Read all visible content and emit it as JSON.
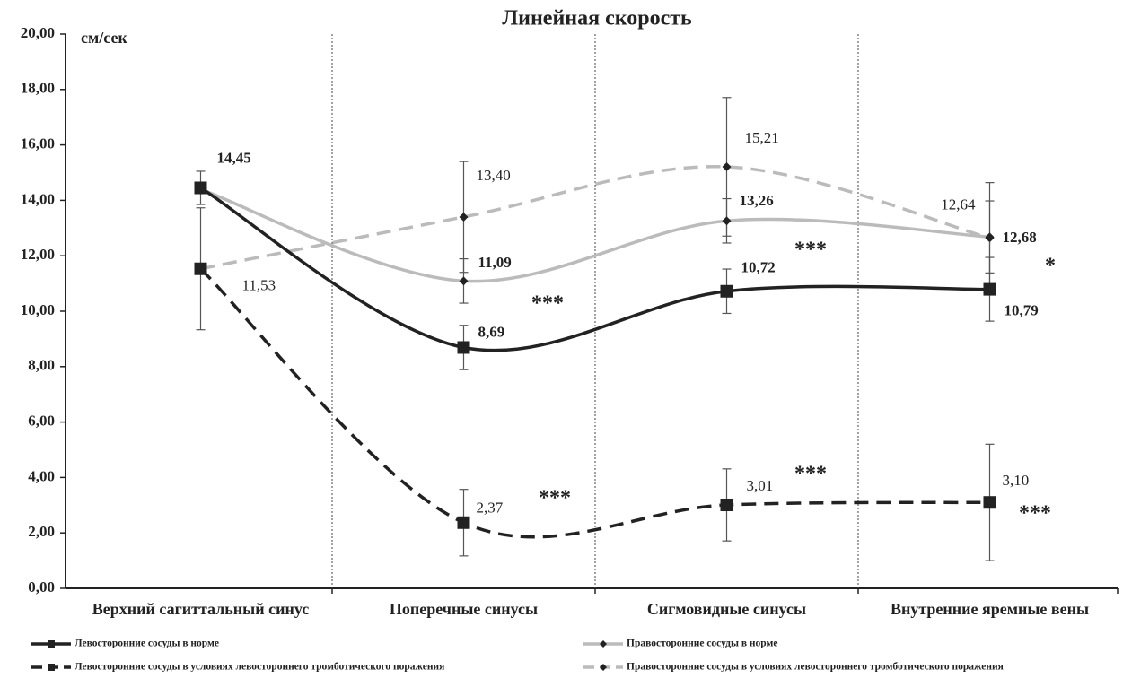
{
  "chart_data": {
    "type": "line",
    "title": "Линейная скорость",
    "y_label": "см/сек",
    "categories": [
      "Верхний сагиттальный синус",
      "Поперечные синусы",
      "Сигмовидные синусы",
      "Внутренние яремные вены"
    ],
    "ylim": [
      0,
      20
    ],
    "yticks": [
      {
        "value": 0,
        "label": "0,00"
      },
      {
        "value": 2,
        "label": "2,00"
      },
      {
        "value": 4,
        "label": "4,00"
      },
      {
        "value": 6,
        "label": "6,00"
      },
      {
        "value": 8,
        "label": "8,00"
      },
      {
        "value": 10,
        "label": "10,00"
      },
      {
        "value": 12,
        "label": "12,00"
      },
      {
        "value": 14,
        "label": "14,00"
      },
      {
        "value": 16,
        "label": "16,00"
      },
      {
        "value": 18,
        "label": "18,00"
      },
      {
        "value": 20,
        "label": "20,00"
      }
    ],
    "smooth": true,
    "series": [
      {
        "name": "Левосторонние сосуды в норме",
        "color": "#222222",
        "line_style": "solid",
        "marker": "square",
        "values": [
          14.45,
          8.69,
          10.72,
          10.79
        ],
        "value_labels": [
          "14,45",
          "8,69",
          "10,72",
          "10,79"
        ],
        "errors": [
          0.6,
          0.8,
          0.8,
          1.15
        ]
      },
      {
        "name": "Правосторонние сосуды в норме",
        "color": "#bbbbbb",
        "line_style": "solid",
        "marker": "diamond",
        "values": [
          14.4,
          11.09,
          13.26,
          12.68
        ],
        "value_labels": [
          null,
          "11,09",
          "13,26",
          "12,68"
        ],
        "errors": [
          null,
          0.8,
          0.8,
          1.3
        ]
      },
      {
        "name": "Левосторонние сосуды в условиях левостороннего тромботического поражения",
        "color": "#222222",
        "line_style": "dashed",
        "marker": "square",
        "values": [
          11.53,
          2.37,
          3.01,
          3.1
        ],
        "value_labels": [
          "11,53",
          "2,37",
          "3,01",
          "3,10"
        ],
        "errors": [
          2.2,
          1.2,
          1.3,
          2.1
        ]
      },
      {
        "name": "Правосторонние сосуды в условиях левостороннего тромботического поражения",
        "color": "#bbbbbb",
        "line_style": "dashed",
        "marker": "diamond",
        "values": [
          11.53,
          13.4,
          15.21,
          12.64
        ],
        "value_labels": [
          null,
          "13,40",
          "15,21",
          "12,64"
        ],
        "errors": [
          null,
          2.0,
          2.5,
          2.0
        ]
      }
    ],
    "annotations": [
      "***",
      "***",
      "***",
      "***",
      "*",
      "***"
    ]
  }
}
